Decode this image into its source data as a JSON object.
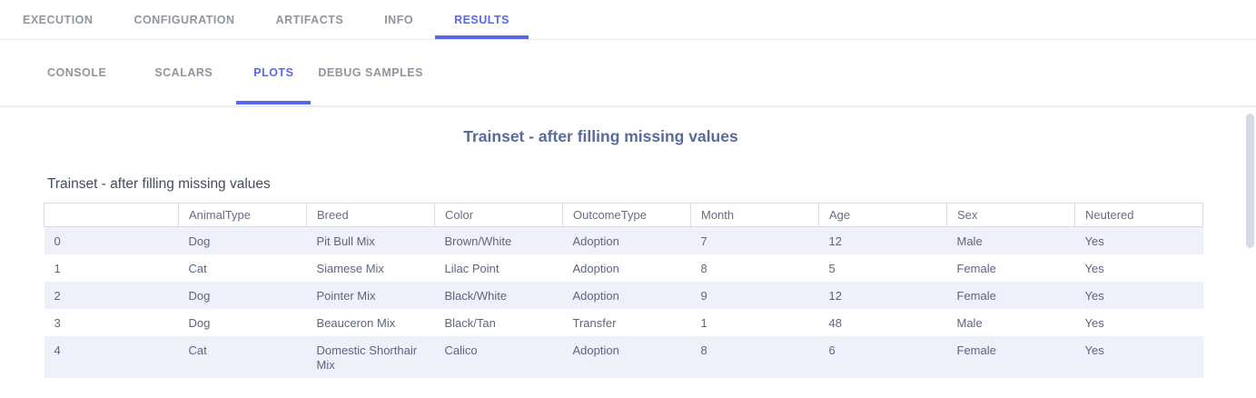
{
  "topnav": {
    "tabs": [
      {
        "label": "EXECUTION",
        "active": false
      },
      {
        "label": "CONFIGURATION",
        "active": false
      },
      {
        "label": "ARTIFACTS",
        "active": false
      },
      {
        "label": "INFO",
        "active": false
      },
      {
        "label": "RESULTS",
        "active": true
      }
    ]
  },
  "subnav": {
    "tabs": [
      {
        "label": "CONSOLE",
        "active": false
      },
      {
        "label": "SCALARS",
        "active": false
      },
      {
        "label": "PLOTS",
        "active": true
      },
      {
        "label": "DEBUG SAMPLES",
        "active": false
      }
    ]
  },
  "plot": {
    "title": "Trainset - after filling missing values"
  },
  "table": {
    "title": "Trainset - after filling missing values",
    "columns": [
      "",
      "AnimalType",
      "Breed",
      "Color",
      "OutcomeType",
      "Month",
      "Age",
      "Sex",
      "Neutered"
    ],
    "rows": [
      [
        "0",
        "Dog",
        "Pit Bull Mix",
        "Brown/White",
        "Adoption",
        "7",
        "12",
        "Male",
        "Yes"
      ],
      [
        "1",
        "Cat",
        "Siamese Mix",
        "Lilac Point",
        "Adoption",
        "8",
        "5",
        "Female",
        "Yes"
      ],
      [
        "2",
        "Dog",
        "Pointer Mix",
        "Black/White",
        "Adoption",
        "9",
        "12",
        "Female",
        "Yes"
      ],
      [
        "3",
        "Dog",
        "Beauceron Mix",
        "Black/Tan",
        "Transfer",
        "1",
        "48",
        "Male",
        "Yes"
      ],
      [
        "4",
        "Cat",
        "Domestic Shorthair Mix",
        "Calico",
        "Adoption",
        "8",
        "6",
        "Female",
        "Yes"
      ]
    ]
  },
  "colors": {
    "accent": "#5767f0",
    "tab_inactive": "#8f95a1",
    "row_alt_bg": "#eef1fa",
    "table_border": "#d9dce4",
    "plot_title_text": "#5b6b99",
    "table_title_text": "#454c59",
    "table_cell_text": "#5d6680"
  }
}
